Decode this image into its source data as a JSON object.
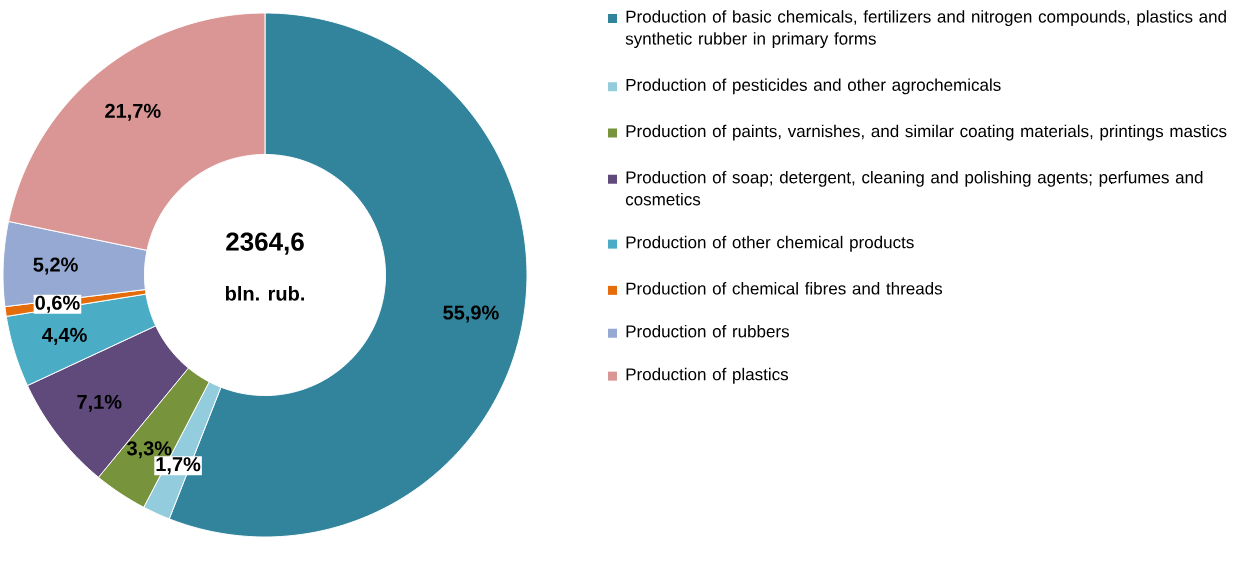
{
  "chart_data": {
    "type": "donut",
    "categories": [
      "Production of basic chemicals, fertilizers and nitrogen compounds, plastics and synthetic rubber in primary forms",
      "Production of pesticides and other agrochemicals",
      "Production of paints, varnishes, and similar coating materials, printings mastics",
      "Production of soap; detergent, cleaning and polishing agents; perfumes and cosmetics",
      "Production of other chemical products",
      "Production of chemical fibres and threads",
      "Production of rubbers",
      "Production of plastics"
    ],
    "values": [
      55.9,
      1.7,
      3.3,
      7.1,
      4.4,
      0.6,
      5.2,
      21.7
    ],
    "value_labels": [
      "55,9%",
      "1,7%",
      "3,3%",
      "7,1%",
      "4,4%",
      "0,6%",
      "5,2%",
      "21,7%"
    ],
    "colors": [
      "#31849b",
      "#93cddd",
      "#77933c",
      "#604a7b",
      "#4bacc6",
      "#e46c0a",
      "#95a9d3",
      "#d99694"
    ],
    "annotations": [
      "2364,6",
      "bln. rub."
    ],
    "legend": "right"
  }
}
